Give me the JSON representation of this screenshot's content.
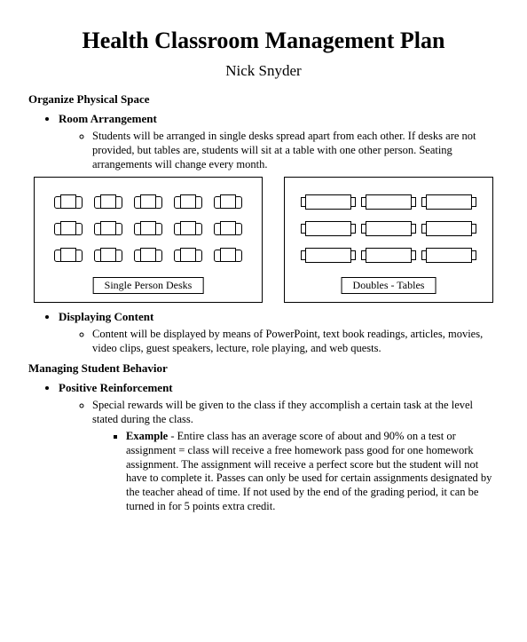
{
  "title": "Health Classroom Management Plan",
  "author": "Nick Snyder",
  "sections": {
    "organize": {
      "heading": "Organize Physical Space",
      "room": {
        "heading": "Room Arrangement",
        "body": "Students will be arranged in single desks spread apart from each other.  If desks are not provided, but tables are, students will sit at a table with one other person.  Seating arrangements will change every month."
      },
      "diagrams": {
        "left_caption": "Single Person Desks",
        "right_caption": "Doubles - Tables",
        "single_rows": 3,
        "single_cols": 5,
        "doubles_rows": 3,
        "doubles_cols": 3
      },
      "content": {
        "heading": "Displaying Content",
        "body": "Content will be displayed by means of PowerPoint, text book readings, articles, movies, video clips, guest speakers, lecture, role playing, and web quests."
      }
    },
    "behavior": {
      "heading": "Managing Student Behavior",
      "positive": {
        "heading": "Positive Reinforcement",
        "body": "Special rewards will be given to the class if they accomplish a certain task at the level stated during the class.",
        "example_label": "Example",
        "example_body": " - Entire class has an average score of about and 90% on a test or assignment = class will receive a free homework pass good for one homework assignment.  The assignment will receive a perfect score but the student will not have to complete it.  Passes can only be used for certain assignments designated by the teacher ahead of time.  If not used by the end of the grading period, it can be turned in for 5 points extra credit."
      }
    }
  }
}
